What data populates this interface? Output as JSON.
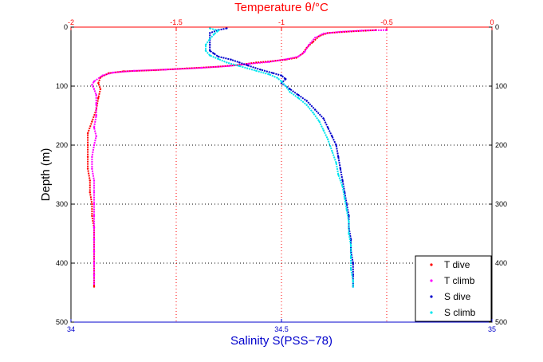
{
  "chart_data": {
    "type": "scatter",
    "top_axis": {
      "label": "Temperature θ/°C",
      "range": [
        -2,
        0
      ],
      "ticks": [
        -2,
        -1.5,
        -1,
        -0.5,
        0
      ],
      "tick_labels": [
        "-2",
        "-1.5",
        "-1",
        "-0.5",
        "0"
      ],
      "color": "#ff0000"
    },
    "bottom_axis": {
      "label": "Salinity S(PSS−78)",
      "range": [
        34,
        35
      ],
      "ticks": [
        34,
        34.5,
        35
      ],
      "tick_labels": [
        "34",
        "34.5",
        "35"
      ],
      "color": "#0000cc"
    },
    "y_axis": {
      "label": "Depth (m)",
      "range": [
        0,
        500
      ],
      "inverted": true,
      "ticks": [
        0,
        100,
        200,
        300,
        400,
        500
      ],
      "tick_labels": [
        "0",
        "100",
        "200",
        "300",
        "400",
        "500"
      ]
    },
    "grid": {
      "horizontal": "dotted black at depth ticks",
      "vertical_temperature": [
        -1.5,
        -1,
        -0.5
      ]
    },
    "legend_position": "bottom-right",
    "series": [
      {
        "name": "T dive",
        "axis": "temperature",
        "color": "#ff0000",
        "points": [
          [
            -0.55,
            5
          ],
          [
            -0.6,
            6
          ],
          [
            -0.7,
            8
          ],
          [
            -0.78,
            10
          ],
          [
            -0.82,
            15
          ],
          [
            -0.85,
            25
          ],
          [
            -0.88,
            35
          ],
          [
            -0.9,
            45
          ],
          [
            -0.93,
            52
          ],
          [
            -0.98,
            55
          ],
          [
            -1.05,
            58
          ],
          [
            -1.12,
            60
          ],
          [
            -1.2,
            64
          ],
          [
            -1.3,
            67
          ],
          [
            -1.45,
            70
          ],
          [
            -1.6,
            73
          ],
          [
            -1.75,
            75
          ],
          [
            -1.82,
            78
          ],
          [
            -1.86,
            85
          ],
          [
            -1.87,
            95
          ],
          [
            -1.86,
            105
          ],
          [
            -1.87,
            120
          ],
          [
            -1.88,
            140
          ],
          [
            -1.9,
            160
          ],
          [
            -1.92,
            180
          ],
          [
            -1.92,
            200
          ],
          [
            -1.92,
            220
          ],
          [
            -1.92,
            240
          ],
          [
            -1.91,
            260
          ],
          [
            -1.91,
            280
          ],
          [
            -1.9,
            300
          ],
          [
            -1.9,
            320
          ],
          [
            -1.89,
            340
          ],
          [
            -1.89,
            360
          ],
          [
            -1.89,
            380
          ],
          [
            -1.89,
            400
          ],
          [
            -1.89,
            420
          ],
          [
            -1.89,
            440
          ]
        ]
      },
      {
        "name": "T climb",
        "axis": "temperature",
        "color": "#ff00ff",
        "points": [
          [
            -0.5,
            5
          ],
          [
            -0.62,
            6
          ],
          [
            -0.72,
            8
          ],
          [
            -0.8,
            11
          ],
          [
            -0.84,
            18
          ],
          [
            -0.87,
            30
          ],
          [
            -0.89,
            42
          ],
          [
            -0.92,
            50
          ],
          [
            -0.97,
            54
          ],
          [
            -1.06,
            59
          ],
          [
            -1.15,
            62
          ],
          [
            -1.25,
            66
          ],
          [
            -1.38,
            69
          ],
          [
            -1.55,
            72
          ],
          [
            -1.7,
            74
          ],
          [
            -1.8,
            77
          ],
          [
            -1.85,
            82
          ],
          [
            -1.89,
            92
          ],
          [
            -1.9,
            98
          ],
          [
            -1.89,
            105
          ],
          [
            -1.88,
            115
          ],
          [
            -1.88,
            130
          ],
          [
            -1.88,
            150
          ],
          [
            -1.89,
            170
          ],
          [
            -1.88,
            185
          ],
          [
            -1.89,
            200
          ],
          [
            -1.9,
            220
          ],
          [
            -1.9,
            240
          ],
          [
            -1.89,
            260
          ],
          [
            -1.89,
            280
          ],
          [
            -1.89,
            300
          ],
          [
            -1.89,
            320
          ],
          [
            -1.89,
            340
          ],
          [
            -1.89,
            360
          ],
          [
            -1.89,
            380
          ],
          [
            -1.89,
            400
          ],
          [
            -1.89,
            420
          ],
          [
            -1.89,
            435
          ]
        ]
      },
      {
        "name": "S dive",
        "axis": "salinity",
        "color": "#0000cc",
        "points": [
          [
            34.37,
            2
          ],
          [
            34.35,
            5
          ],
          [
            34.33,
            10
          ],
          [
            34.33,
            20
          ],
          [
            34.33,
            30
          ],
          [
            34.33,
            40
          ],
          [
            34.34,
            45
          ],
          [
            34.35,
            50
          ],
          [
            34.38,
            55
          ],
          [
            34.4,
            60
          ],
          [
            34.42,
            65
          ],
          [
            34.45,
            72
          ],
          [
            34.48,
            78
          ],
          [
            34.5,
            82
          ],
          [
            34.51,
            88
          ],
          [
            34.5,
            95
          ],
          [
            34.52,
            105
          ],
          [
            34.54,
            115
          ],
          [
            34.56,
            125
          ],
          [
            34.58,
            140
          ],
          [
            34.6,
            155
          ],
          [
            34.61,
            170
          ],
          [
            34.62,
            185
          ],
          [
            34.63,
            200
          ],
          [
            34.635,
            220
          ],
          [
            34.64,
            240
          ],
          [
            34.645,
            260
          ],
          [
            34.65,
            280
          ],
          [
            34.655,
            300
          ],
          [
            34.66,
            320
          ],
          [
            34.66,
            340
          ],
          [
            34.665,
            360
          ],
          [
            34.665,
            380
          ],
          [
            34.67,
            400
          ],
          [
            34.67,
            420
          ],
          [
            34.67,
            440
          ]
        ]
      },
      {
        "name": "S climb",
        "axis": "salinity",
        "color": "#00e5ee",
        "points": [
          [
            34.33,
            2
          ],
          [
            34.35,
            6
          ],
          [
            34.34,
            12
          ],
          [
            34.33,
            20
          ],
          [
            34.32,
            30
          ],
          [
            34.32,
            40
          ],
          [
            34.33,
            48
          ],
          [
            34.35,
            54
          ],
          [
            34.37,
            60
          ],
          [
            34.4,
            66
          ],
          [
            34.44,
            74
          ],
          [
            34.47,
            80
          ],
          [
            34.49,
            86
          ],
          [
            34.5,
            92
          ],
          [
            34.51,
            100
          ],
          [
            34.52,
            110
          ],
          [
            34.54,
            120
          ],
          [
            34.56,
            132
          ],
          [
            34.575,
            145
          ],
          [
            34.59,
            160
          ],
          [
            34.6,
            175
          ],
          [
            34.61,
            190
          ],
          [
            34.62,
            210
          ],
          [
            34.63,
            230
          ],
          [
            34.635,
            250
          ],
          [
            34.645,
            270
          ],
          [
            34.65,
            290
          ],
          [
            34.655,
            310
          ],
          [
            34.66,
            330
          ],
          [
            34.66,
            350
          ],
          [
            34.665,
            370
          ],
          [
            34.665,
            390
          ],
          [
            34.665,
            410
          ],
          [
            34.67,
            430
          ],
          [
            34.67,
            440
          ]
        ]
      }
    ]
  }
}
